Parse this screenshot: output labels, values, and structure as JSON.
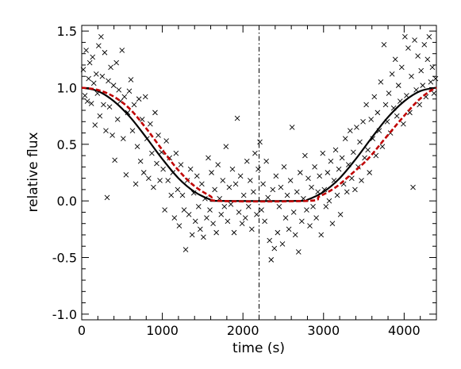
{
  "chart_data": {
    "type": "scatter",
    "title": "",
    "xlabel": "time (s)",
    "ylabel": "relative flux",
    "xlim": [
      0,
      4400
    ],
    "ylim": [
      -1.05,
      1.55
    ],
    "x_ticks": [
      0,
      1000,
      2000,
      3000,
      4000
    ],
    "x_tick_labels": [
      "0",
      "1000",
      "2000",
      "3000",
      "4000"
    ],
    "y_ticks": [
      -1.0,
      -0.5,
      0.0,
      0.5,
      1.0,
      1.5
    ],
    "y_tick_labels": [
      "-1.0",
      "-0.5",
      "0.0",
      "0.5",
      "1.0",
      "1.5"
    ],
    "grid": false,
    "legend": "none",
    "vertical_marker_x": 2200,
    "series": [
      {
        "style": "markers-x",
        "color": "#000000",
        "points": [
          [
            20,
            1.16
          ],
          [
            40,
            0.93
          ],
          [
            55,
            1.33
          ],
          [
            70,
            0.88
          ],
          [
            85,
            1.08
          ],
          [
            100,
            1.22
          ],
          [
            120,
            0.86
          ],
          [
            135,
            1.27
          ],
          [
            150,
            1.04
          ],
          [
            165,
            0.67
          ],
          [
            180,
            1.12
          ],
          [
            195,
            0.95
          ],
          [
            210,
            1.37
          ],
          [
            225,
            0.75
          ],
          [
            240,
            1.45
          ],
          [
            255,
            1.1
          ],
          [
            270,
            0.85
          ],
          [
            285,
            1.31
          ],
          [
            300,
            0.62
          ],
          [
            315,
            0.03
          ],
          [
            330,
            1.06
          ],
          [
            345,
            0.83
          ],
          [
            360,
            1.18
          ],
          [
            380,
            0.58
          ],
          [
            395,
            1.02
          ],
          [
            410,
            0.36
          ],
          [
            430,
            1.22
          ],
          [
            445,
            0.72
          ],
          [
            460,
            0.98
          ],
          [
            480,
            0.88
          ],
          [
            500,
            1.33
          ],
          [
            515,
            0.55
          ],
          [
            530,
            0.92
          ],
          [
            550,
            0.23
          ],
          [
            570,
            0.78
          ],
          [
            590,
            0.97
          ],
          [
            610,
            1.07
          ],
          [
            630,
            0.62
          ],
          [
            650,
            0.85
          ],
          [
            670,
            0.15
          ],
          [
            690,
            0.48
          ],
          [
            710,
            0.9
          ],
          [
            730,
            0.35
          ],
          [
            750,
            0.72
          ],
          [
            770,
            0.25
          ],
          [
            790,
            0.92
          ],
          [
            810,
            0.55
          ],
          [
            830,
            0.2
          ],
          [
            850,
            0.68
          ],
          [
            870,
            0.42
          ],
          [
            890,
            0.12
          ],
          [
            910,
            0.78
          ],
          [
            930,
            0.33
          ],
          [
            950,
            0.58
          ],
          [
            970,
            0.18
          ],
          [
            990,
            0.43
          ],
          [
            1010,
            0.28
          ],
          [
            1030,
            -0.08
          ],
          [
            1050,
            0.53
          ],
          [
            1070,
            0.18
          ],
          [
            1090,
            0.38
          ],
          [
            1110,
            0.05
          ],
          [
            1130,
            0.25
          ],
          [
            1150,
            -0.15
          ],
          [
            1170,
            0.42
          ],
          [
            1190,
            0.1
          ],
          [
            1210,
            -0.22
          ],
          [
            1230,
            0.32
          ],
          [
            1250,
            0.05
          ],
          [
            1270,
            -0.08
          ],
          [
            1290,
            -0.43
          ],
          [
            1310,
            0.18
          ],
          [
            1330,
            -0.12
          ],
          [
            1350,
            0.28
          ],
          [
            1370,
            -0.3
          ],
          [
            1390,
            0.07
          ],
          [
            1410,
            -0.18
          ],
          [
            1430,
            0.22
          ],
          [
            1450,
            -0.05
          ],
          [
            1470,
            -0.25
          ],
          [
            1490,
            0.15
          ],
          [
            1510,
            -0.32
          ],
          [
            1530,
            0.02
          ],
          [
            1550,
            -0.15
          ],
          [
            1570,
            0.38
          ],
          [
            1590,
            -0.08
          ],
          [
            1610,
            0.25
          ],
          [
            1630,
            -0.2
          ],
          [
            1650,
            0.1
          ],
          [
            1670,
            -0.28
          ],
          [
            1690,
            0.32
          ],
          [
            1710,
            0.02
          ],
          [
            1730,
            -0.12
          ],
          [
            1750,
            0.18
          ],
          [
            1770,
            -0.05
          ],
          [
            1790,
            0.48
          ],
          [
            1810,
            -0.18
          ],
          [
            1830,
            0.12
          ],
          [
            1850,
            -0.03
          ],
          [
            1870,
            0.28
          ],
          [
            1890,
            -0.28
          ],
          [
            1910,
            0.15
          ],
          [
            1930,
            0.73
          ],
          [
            1950,
            -0.1
          ],
          [
            1970,
            0.22
          ],
          [
            1990,
            -0.2
          ],
          [
            2010,
            0.05
          ],
          [
            2030,
            -0.15
          ],
          [
            2050,
            0.35
          ],
          [
            2070,
            -0.05
          ],
          [
            2090,
            0.18
          ],
          [
            2110,
            -0.25
          ],
          [
            2130,
            0.08
          ],
          [
            2150,
            0.42
          ],
          [
            2170,
            -0.12
          ],
          [
            2190,
            0.28
          ],
          [
            2210,
            0.52
          ],
          [
            2230,
            -0.08
          ],
          [
            2250,
            0.15
          ],
          [
            2270,
            -0.18
          ],
          [
            2290,
            0.35
          ],
          [
            2310,
            0.03
          ],
          [
            2330,
            -0.35
          ],
          [
            2350,
            -0.52
          ],
          [
            2370,
            0.1
          ],
          [
            2390,
            -0.42
          ],
          [
            2410,
            0.22
          ],
          [
            2430,
            -0.28
          ],
          [
            2450,
            -0.05
          ],
          [
            2470,
            0.12
          ],
          [
            2490,
            -0.38
          ],
          [
            2510,
            0.3
          ],
          [
            2530,
            -0.15
          ],
          [
            2550,
            0.05
          ],
          [
            2570,
            -0.25
          ],
          [
            2590,
            0.18
          ],
          [
            2610,
            0.65
          ],
          [
            2630,
            -0.1
          ],
          [
            2650,
            -0.3
          ],
          [
            2670,
            0.08
          ],
          [
            2690,
            -0.45
          ],
          [
            2710,
            0.25
          ],
          [
            2730,
            -0.18
          ],
          [
            2750,
            0.02
          ],
          [
            2770,
            0.4
          ],
          [
            2790,
            -0.08
          ],
          [
            2810,
            0.2
          ],
          [
            2830,
            -0.22
          ],
          [
            2850,
            0.12
          ],
          [
            2870,
            -0.05
          ],
          [
            2890,
            0.3
          ],
          [
            2910,
            -0.15
          ],
          [
            2930,
            0.08
          ],
          [
            2950,
            0.22
          ],
          [
            2970,
            -0.3
          ],
          [
            2990,
            0.42
          ],
          [
            3010,
            0.1
          ],
          [
            3030,
            -0.05
          ],
          [
            3050,
            0.25
          ],
          [
            3070,
            0.0
          ],
          [
            3090,
            0.35
          ],
          [
            3110,
            -0.2
          ],
          [
            3130,
            0.18
          ],
          [
            3150,
            0.45
          ],
          [
            3170,
            0.05
          ],
          [
            3190,
            0.28
          ],
          [
            3210,
            -0.12
          ],
          [
            3230,
            0.38
          ],
          [
            3250,
            0.15
          ],
          [
            3270,
            0.55
          ],
          [
            3290,
            0.08
          ],
          [
            3310,
            0.32
          ],
          [
            3330,
            0.62
          ],
          [
            3350,
            0.2
          ],
          [
            3370,
            0.43
          ],
          [
            3390,
            0.1
          ],
          [
            3410,
            0.65
          ],
          [
            3430,
            0.3
          ],
          [
            3450,
            0.52
          ],
          [
            3470,
            0.18
          ],
          [
            3490,
            0.7
          ],
          [
            3510,
            0.38
          ],
          [
            3530,
            0.85
          ],
          [
            3550,
            0.45
          ],
          [
            3570,
            0.25
          ],
          [
            3590,
            0.72
          ],
          [
            3610,
            0.55
          ],
          [
            3630,
            0.92
          ],
          [
            3650,
            0.4
          ],
          [
            3670,
            0.78
          ],
          [
            3690,
            0.62
          ],
          [
            3710,
            1.05
          ],
          [
            3730,
            0.48
          ],
          [
            3750,
            1.38
          ],
          [
            3770,
            0.85
          ],
          [
            3790,
            0.7
          ],
          [
            3810,
            0.95
          ],
          [
            3830,
            0.6
          ],
          [
            3850,
            1.12
          ],
          [
            3870,
            0.82
          ],
          [
            3890,
            1.25
          ],
          [
            3910,
            0.75
          ],
          [
            3930,
            1.02
          ],
          [
            3950,
            0.88
          ],
          [
            3970,
            1.18
          ],
          [
            3990,
            0.68
          ],
          [
            4010,
            1.45
          ],
          [
            4030,
            0.93
          ],
          [
            4050,
            1.35
          ],
          [
            4070,
            0.78
          ],
          [
            4090,
            1.1
          ],
          [
            4110,
            0.12
          ],
          [
            4130,
            1.42
          ],
          [
            4150,
            0.98
          ],
          [
            4170,
            1.28
          ],
          [
            4190,
            0.85
          ],
          [
            4210,
            1.15
          ],
          [
            4230,
            1.02
          ],
          [
            4250,
            1.38
          ],
          [
            4270,
            0.92
          ],
          [
            4290,
            1.25
          ],
          [
            4310,
            1.45
          ],
          [
            4330,
            1.05
          ],
          [
            4350,
            1.18
          ],
          [
            4370,
            0.95
          ],
          [
            4390,
            1.08
          ]
        ]
      },
      {
        "style": "solid-line",
        "color": "#000000",
        "points": [
          [
            0,
            1.0
          ],
          [
            200,
            0.97
          ],
          [
            400,
            0.88
          ],
          [
            600,
            0.74
          ],
          [
            800,
            0.56
          ],
          [
            1000,
            0.37
          ],
          [
            1200,
            0.2
          ],
          [
            1400,
            0.08
          ],
          [
            1600,
            0.01
          ],
          [
            1700,
            0.0
          ],
          [
            2700,
            0.0
          ],
          [
            2800,
            0.01
          ],
          [
            3000,
            0.08
          ],
          [
            3200,
            0.2
          ],
          [
            3400,
            0.37
          ],
          [
            3600,
            0.56
          ],
          [
            3800,
            0.74
          ],
          [
            4000,
            0.88
          ],
          [
            4200,
            0.97
          ],
          [
            4400,
            1.0
          ]
        ]
      },
      {
        "style": "dashed-line",
        "color": "#c00000",
        "points": [
          [
            0,
            1.0
          ],
          [
            200,
            0.98
          ],
          [
            400,
            0.92
          ],
          [
            600,
            0.81
          ],
          [
            800,
            0.64
          ],
          [
            1000,
            0.45
          ],
          [
            1200,
            0.27
          ],
          [
            1400,
            0.13
          ],
          [
            1600,
            0.04
          ],
          [
            1700,
            0.0
          ],
          [
            2800,
            0.0
          ],
          [
            2950,
            0.04
          ],
          [
            3150,
            0.12
          ],
          [
            3350,
            0.24
          ],
          [
            3550,
            0.37
          ],
          [
            3750,
            0.54
          ],
          [
            3950,
            0.71
          ],
          [
            4150,
            0.87
          ],
          [
            4300,
            0.96
          ],
          [
            4400,
            1.0
          ]
        ]
      }
    ]
  }
}
